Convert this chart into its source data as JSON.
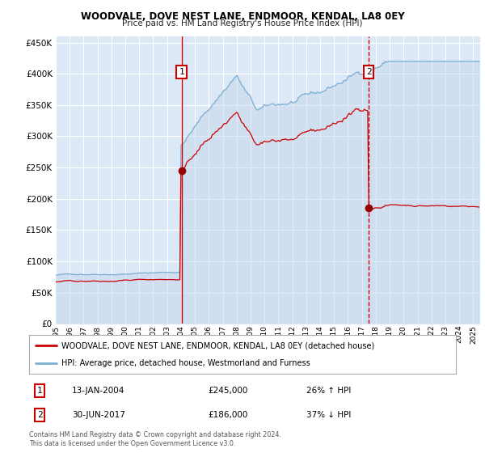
{
  "title": "WOODVALE, DOVE NEST LANE, ENDMOOR, KENDAL, LA8 0EY",
  "subtitle": "Price paid vs. HM Land Registry's House Price Index (HPI)",
  "background_color": "#ffffff",
  "plot_bg_color": "#dce8f5",
  "grid_color": "#ffffff",
  "ylim": [
    0,
    460000
  ],
  "yticks": [
    0,
    50000,
    100000,
    150000,
    200000,
    250000,
    300000,
    350000,
    400000,
    450000
  ],
  "xlim_start": 1995.0,
  "xlim_end": 2025.5,
  "xtick_years": [
    1995,
    1996,
    1997,
    1998,
    1999,
    2000,
    2001,
    2002,
    2003,
    2004,
    2005,
    2006,
    2007,
    2008,
    2009,
    2010,
    2011,
    2012,
    2013,
    2014,
    2015,
    2016,
    2017,
    2018,
    2019,
    2020,
    2021,
    2022,
    2023,
    2024,
    2025
  ],
  "sale1_x": 2004.04,
  "sale1_y": 245000,
  "sale1_label": "1",
  "sale2_x": 2017.5,
  "sale2_y": 186000,
  "sale2_label": "2",
  "sale_color": "#cc0000",
  "hpi_color": "#7aafd4",
  "vline_color": "#cc0000",
  "marker_color": "#990000",
  "legend_entries": [
    "WOODVALE, DOVE NEST LANE, ENDMOOR, KENDAL, LA8 0EY (detached house)",
    "HPI: Average price, detached house, Westmorland and Furness"
  ],
  "annotation1_date": "13-JAN-2004",
  "annotation1_price": "£245,000",
  "annotation1_hpi": "26% ↑ HPI",
  "annotation2_date": "30-JUN-2017",
  "annotation2_price": "£186,000",
  "annotation2_hpi": "37% ↓ HPI",
  "footer": "Contains HM Land Registry data © Crown copyright and database right 2024.\nThis data is licensed under the Open Government Licence v3.0."
}
